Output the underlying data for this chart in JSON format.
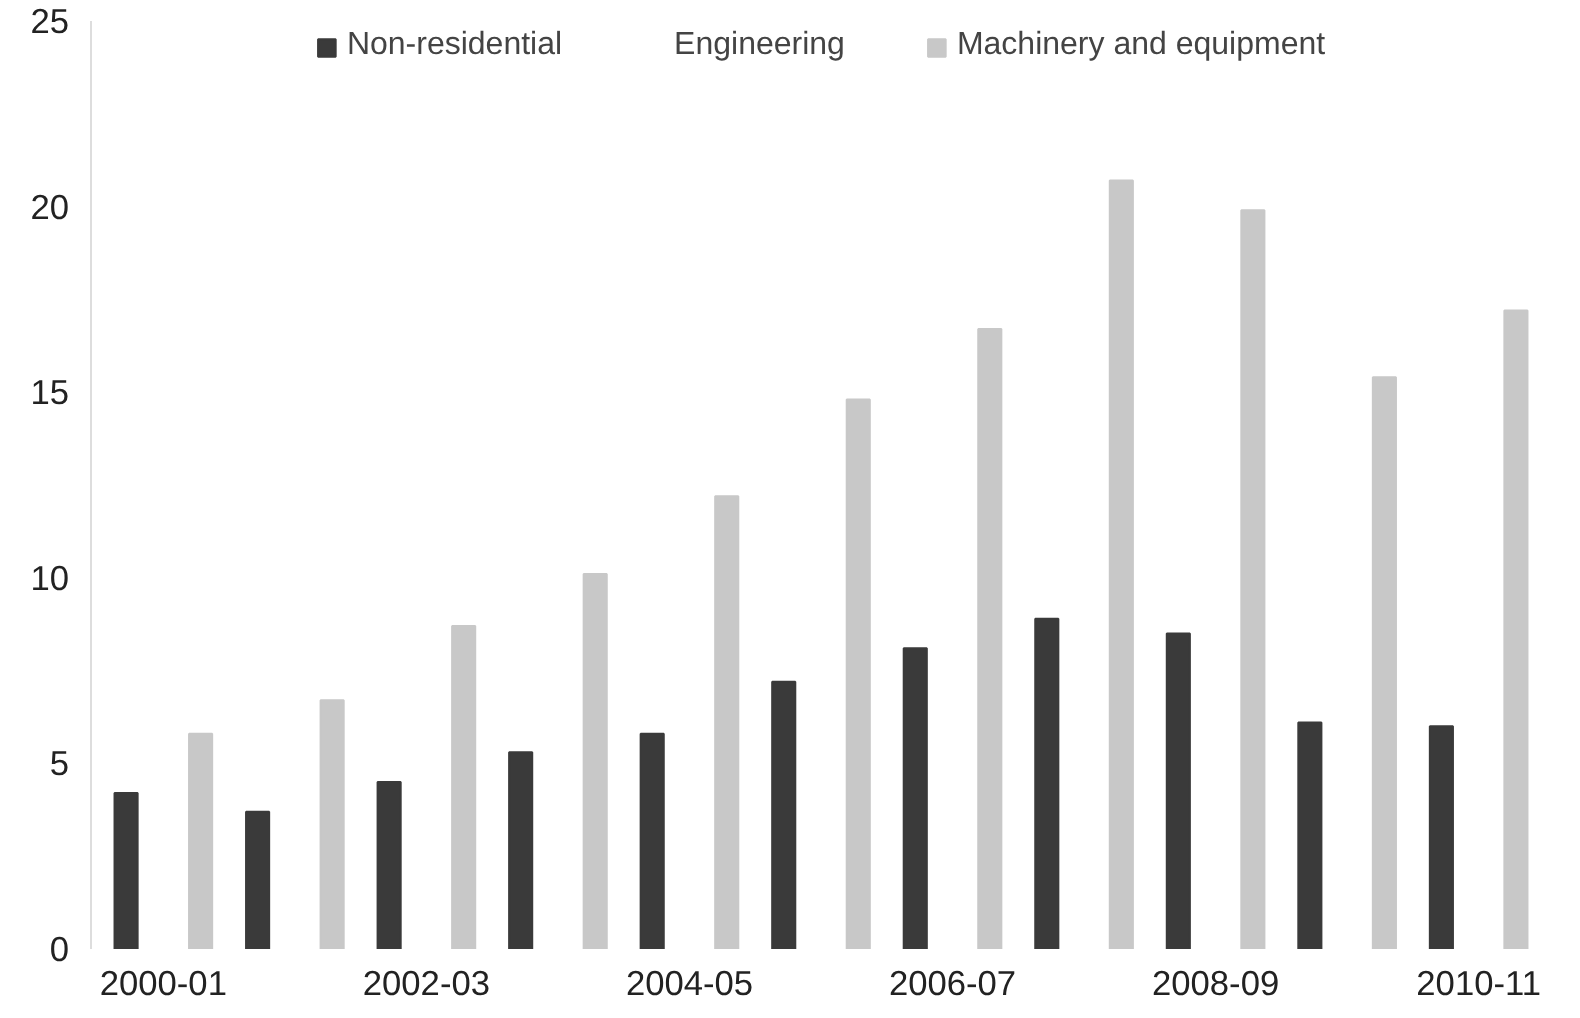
{
  "chart_data": {
    "type": "bar",
    "categories": [
      "2000-01",
      null,
      "2002-03",
      null,
      "2004-05",
      null,
      "2006-07",
      null,
      "2008-09",
      null,
      "2010-11"
    ],
    "series": [
      {
        "name": "Non-residential",
        "color": "#3a3a3a",
        "values": [
          4.2,
          3.7,
          4.5,
          5.3,
          5.8,
          7.2,
          8.1,
          8.9,
          8.5,
          6.1,
          6.0
        ]
      },
      {
        "name": "Engineering",
        "values": [
          null,
          null,
          null,
          null,
          null,
          null,
          null,
          null,
          null,
          null,
          null
        ]
      },
      {
        "name": "Machinery and equipment",
        "color": "#c8c8c8",
        "values": [
          5.8,
          6.7,
          8.7,
          10.1,
          12.2,
          14.8,
          16.7,
          20.7,
          19.9,
          15.4,
          17.2
        ]
      }
    ],
    "ylim": [
      0,
      25
    ],
    "yticks": [
      0,
      5,
      10,
      15,
      20,
      25
    ],
    "grid": false,
    "legend": "top"
  }
}
